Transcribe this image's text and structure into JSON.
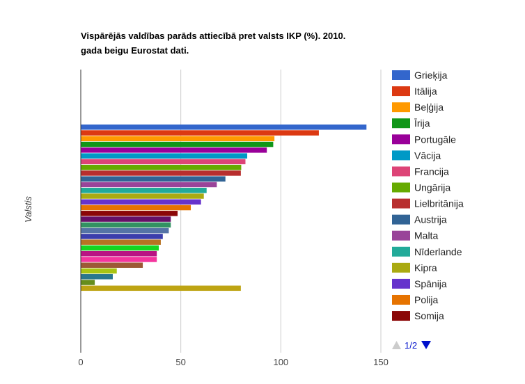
{
  "chart_data": {
    "type": "bar",
    "orientation": "horizontal",
    "title_lines": [
      "Vispārējās valdības parāds attiecībā pret valsts IKP (%). 2010.",
      "gada beigu Eurostat dati."
    ],
    "ylabel": "Valstis",
    "xlabel": "",
    "xlim": [
      0,
      150
    ],
    "xticks": [
      0,
      50,
      100,
      150
    ],
    "grid": true,
    "legend_position": "right",
    "legend_page": "1/2",
    "series": [
      {
        "name": "Grieķija",
        "color": "#3366cc",
        "value": 142.8
      },
      {
        "name": "Itālija",
        "color": "#dc3912",
        "value": 119
      },
      {
        "name": "Beļģija",
        "color": "#ff9900",
        "value": 96.8
      },
      {
        "name": "Īrija",
        "color": "#109618",
        "value": 96.2
      },
      {
        "name": "Portugāle",
        "color": "#990099",
        "value": 93
      },
      {
        "name": "Vācija",
        "color": "#0099c6",
        "value": 83.2
      },
      {
        "name": "Francija",
        "color": "#dd4477",
        "value": 82.3
      },
      {
        "name": "Ungārija",
        "color": "#66aa00",
        "value": 80.2
      },
      {
        "name": "Lielbritānija",
        "color": "#b82e2e",
        "value": 80
      },
      {
        "name": "Austrija",
        "color": "#316395",
        "value": 72.3
      },
      {
        "name": "Malta",
        "color": "#994499",
        "value": 68
      },
      {
        "name": "Nīderlande",
        "color": "#22aa99",
        "value": 62.9
      },
      {
        "name": "Kipra",
        "color": "#aaaa11",
        "value": 61.5
      },
      {
        "name": "Spānija",
        "color": "#6633cc",
        "value": 60.1
      },
      {
        "name": "Polija",
        "color": "#e67300",
        "value": 55
      },
      {
        "name": "Somija",
        "color": "#8b0707",
        "value": 48.4
      },
      {
        "name": "",
        "color": "#651067",
        "value": 45
      },
      {
        "name": "",
        "color": "#329262",
        "value": 45
      },
      {
        "name": "",
        "color": "#5574a6",
        "value": 44
      },
      {
        "name": "",
        "color": "#3b3eac",
        "value": 41
      },
      {
        "name": "",
        "color": "#b77322",
        "value": 40
      },
      {
        "name": "",
        "color": "#16d620",
        "value": 39
      },
      {
        "name": "",
        "color": "#b91383",
        "value": 38
      },
      {
        "name": "",
        "color": "#f4359e",
        "value": 38
      },
      {
        "name": "",
        "color": "#9c5935",
        "value": 31
      },
      {
        "name": "",
        "color": "#a9c413",
        "value": 18
      },
      {
        "name": "",
        "color": "#2a778d",
        "value": 16
      },
      {
        "name": "",
        "color": "#668d1c",
        "value": 7
      },
      {
        "name": "",
        "color": "#bea413",
        "value": 80
      }
    ]
  },
  "colors": {
    "title": "#000000",
    "axis_text": "#444444",
    "gridline": "#cccccc",
    "axis_line": "#333333",
    "pager_up_disabled": "#cccccc",
    "pager_down": "#0011cc"
  }
}
